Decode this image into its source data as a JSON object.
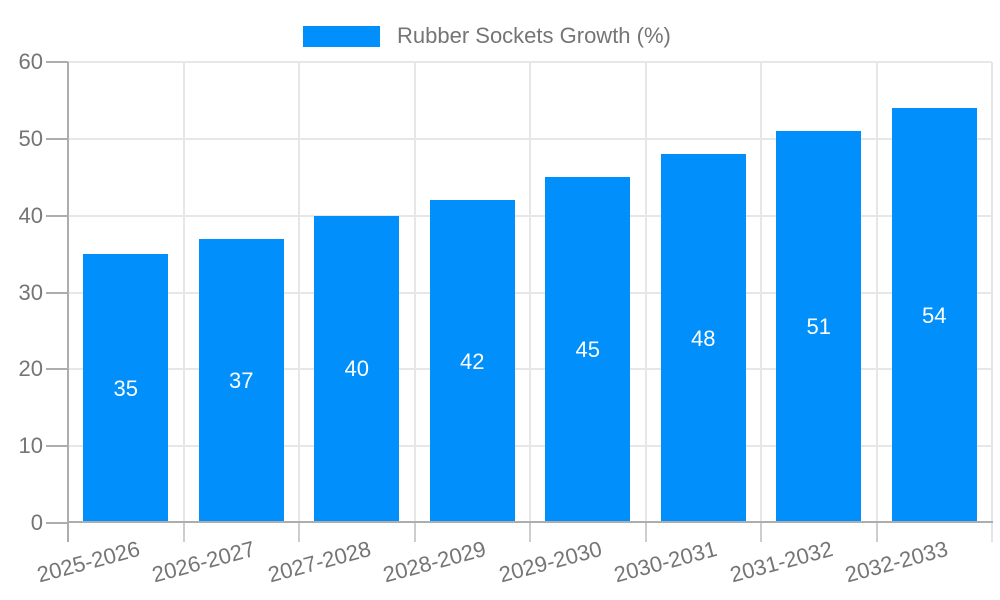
{
  "legend": {
    "label": "Rubber Sockets Growth (%)"
  },
  "chart_data": {
    "type": "bar",
    "title": "",
    "series_name": "Rubber Sockets Growth (%)",
    "categories": [
      "2025-2026",
      "2026-2027",
      "2027-2028",
      "2028-2029",
      "2029-2030",
      "2030-2031",
      "2031-2032",
      "2032-2033"
    ],
    "values": [
      35,
      37,
      40,
      42,
      45,
      48,
      51,
      54
    ],
    "value_labels_inside_bars": true,
    "xlabel": "",
    "ylabel": "",
    "ylim": [
      0,
      60
    ],
    "yticks": [
      0,
      10,
      20,
      30,
      40,
      50,
      60
    ],
    "grid": true,
    "legend_position": "top-center",
    "x_tick_rotation_deg": -15,
    "colors": {
      "bar": "#008FFB",
      "value_label": "#FFFFFF",
      "axis_text": "#757575",
      "legend_text": "#757575",
      "gridline": "#E7E7E7",
      "axis_line": "#ADADAD",
      "minor_tick": "#CDCDCD",
      "plot_right_border": "#E4E4E4",
      "background": "#FFFFFF"
    }
  }
}
